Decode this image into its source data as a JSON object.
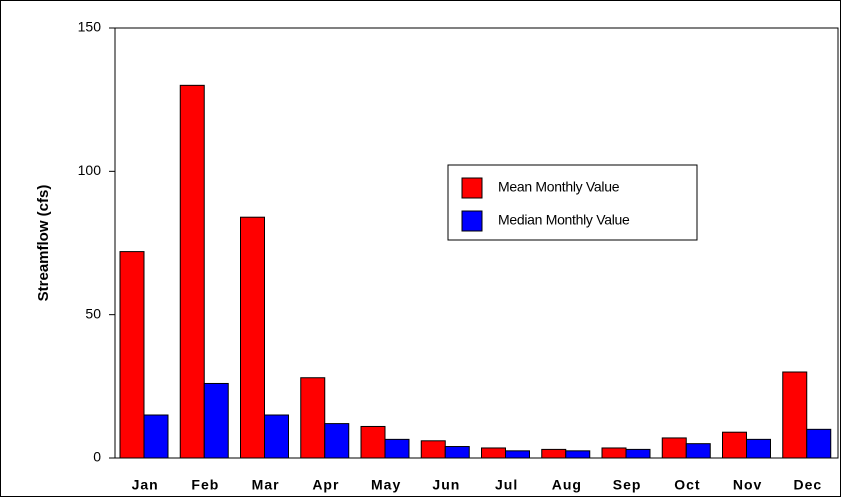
{
  "chart_data": {
    "type": "bar",
    "ylabel": "Streamflow (cfs)",
    "categories": [
      "Jan",
      "Feb",
      "Mar",
      "Apr",
      "May",
      "Jun",
      "Jul",
      "Aug",
      "Sep",
      "Oct",
      "Nov",
      "Dec"
    ],
    "series": [
      {
        "name": "Mean Monthly Value",
        "color": "#ff0000",
        "values": [
          72,
          130,
          84,
          28,
          11,
          6,
          3.5,
          3,
          3.5,
          7,
          9,
          30
        ]
      },
      {
        "name": "Median Monthly Value",
        "color": "#0000ff",
        "values": [
          15,
          26,
          15,
          12,
          6.5,
          4,
          2.5,
          2.5,
          3,
          5,
          6.5,
          10
        ]
      }
    ],
    "ylim": [
      0,
      150
    ],
    "yticks": [
      0,
      50,
      100,
      150
    ],
    "grid": false
  }
}
